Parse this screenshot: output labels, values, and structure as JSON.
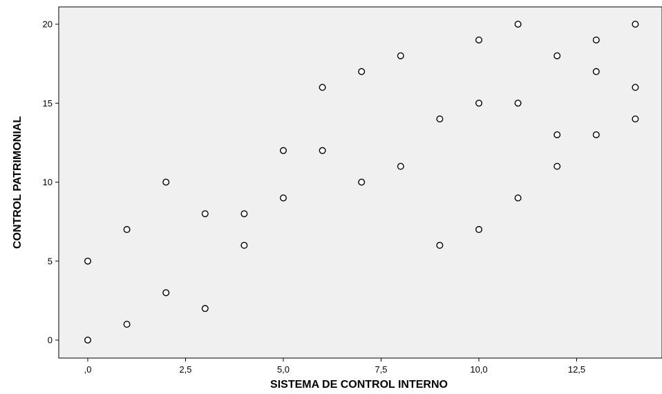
{
  "chart_data": {
    "type": "scatter",
    "xlabel": "SISTEMA DE CONTROL INTERNO",
    "ylabel": "CONTROL PATRIMONIAL",
    "xlim": [
      -1.5,
      15
    ],
    "ylim": [
      -1,
      21
    ],
    "x_ticks": [
      {
        "value": 0,
        "label": ",0"
      },
      {
        "value": 2.5,
        "label": "2,5"
      },
      {
        "value": 5,
        "label": "5,0"
      },
      {
        "value": 7.5,
        "label": "7,5"
      },
      {
        "value": 10,
        "label": "10,0"
      },
      {
        "value": 12.5,
        "label": "12,5"
      }
    ],
    "y_ticks": [
      {
        "value": 0,
        "label": "0"
      },
      {
        "value": 5,
        "label": "5"
      },
      {
        "value": 10,
        "label": "10"
      },
      {
        "value": 15,
        "label": "15"
      },
      {
        "value": 20,
        "label": "20"
      }
    ],
    "grid": false,
    "colors": {
      "plot_background": "#f0f0f0",
      "marker_stroke": "#000000",
      "marker_fill": "#ffffff"
    },
    "points": [
      {
        "x": 0,
        "y": 0
      },
      {
        "x": 0,
        "y": 5
      },
      {
        "x": 1,
        "y": 1
      },
      {
        "x": 1,
        "y": 7
      },
      {
        "x": 2,
        "y": 3
      },
      {
        "x": 2,
        "y": 10
      },
      {
        "x": 3,
        "y": 2
      },
      {
        "x": 3,
        "y": 8
      },
      {
        "x": 4,
        "y": 6
      },
      {
        "x": 4,
        "y": 8
      },
      {
        "x": 5,
        "y": 9
      },
      {
        "x": 5,
        "y": 12
      },
      {
        "x": 6,
        "y": 12
      },
      {
        "x": 6,
        "y": 16
      },
      {
        "x": 7,
        "y": 10
      },
      {
        "x": 7,
        "y": 17
      },
      {
        "x": 8,
        "y": 11
      },
      {
        "x": 8,
        "y": 18
      },
      {
        "x": 9,
        "y": 6
      },
      {
        "x": 9,
        "y": 14
      },
      {
        "x": 10,
        "y": 7
      },
      {
        "x": 10,
        "y": 15
      },
      {
        "x": 10,
        "y": 19
      },
      {
        "x": 11,
        "y": 9
      },
      {
        "x": 11,
        "y": 15
      },
      {
        "x": 11,
        "y": 20
      },
      {
        "x": 12,
        "y": 11
      },
      {
        "x": 12,
        "y": 13
      },
      {
        "x": 12,
        "y": 18
      },
      {
        "x": 13,
        "y": 13
      },
      {
        "x": 13,
        "y": 17
      },
      {
        "x": 13,
        "y": 19
      },
      {
        "x": 14,
        "y": 14
      },
      {
        "x": 14,
        "y": 16
      },
      {
        "x": 14,
        "y": 20
      }
    ]
  }
}
